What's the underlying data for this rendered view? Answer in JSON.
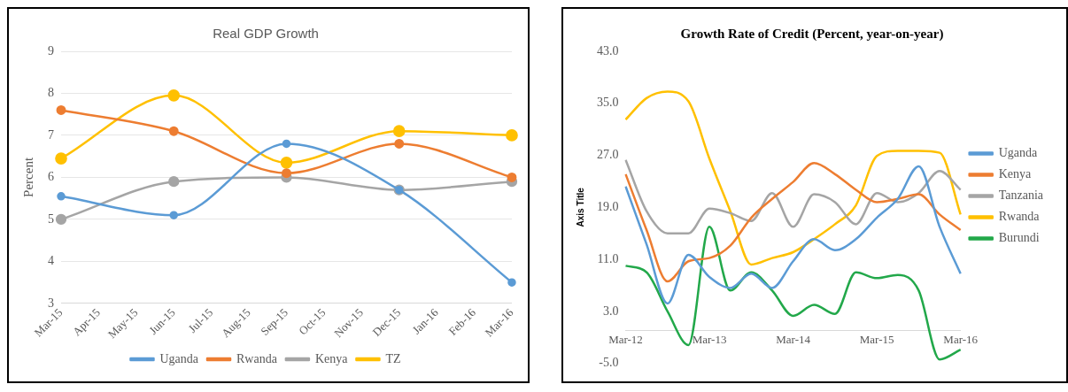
{
  "chart_data": [
    {
      "type": "line",
      "title": "Real GDP Growth",
      "ylabel": "Percent",
      "categories": [
        "Mar-15",
        "Apr-15",
        "May-15",
        "Jun-15",
        "Jul-15",
        "Aug-15",
        "Sep-15",
        "Oct-15",
        "Nov-15",
        "Dec-15",
        "Jan-16",
        "Feb-16",
        "Mar-16"
      ],
      "ylim": [
        3,
        9
      ],
      "yticks": [
        3,
        4,
        5,
        6,
        7,
        8,
        9
      ],
      "grid": "y",
      "legend": "bottom",
      "marker": "circle",
      "series": [
        {
          "name": "Uganda",
          "color": "#5b9bd5",
          "x": [
            "Mar-15",
            "Jun-15",
            "Sep-15",
            "Dec-15",
            "Mar-16"
          ],
          "values": [
            5.55,
            5.1,
            6.8,
            5.7,
            3.5
          ]
        },
        {
          "name": "Rwanda",
          "color": "#ed7d31",
          "x": [
            "Mar-15",
            "Jun-15",
            "Sep-15",
            "Dec-15",
            "Mar-16"
          ],
          "values": [
            7.6,
            7.1,
            6.1,
            6.8,
            6.0
          ]
        },
        {
          "name": "Kenya",
          "color": "#a5a5a5",
          "x": [
            "Mar-15",
            "Jun-15",
            "Sep-15",
            "Dec-15",
            "Mar-16"
          ],
          "values": [
            5.0,
            5.9,
            6.0,
            5.7,
            5.9
          ]
        },
        {
          "name": "TZ",
          "color": "#ffc000",
          "x": [
            "Mar-15",
            "Jun-15",
            "Sep-15",
            "Dec-15",
            "Mar-16"
          ],
          "values": [
            6.45,
            7.95,
            6.35,
            7.1,
            7.0
          ]
        }
      ]
    },
    {
      "type": "line",
      "title": "Growth Rate of Credit (Percent, year-on-year)",
      "ylabel": "Axis Title",
      "categories": [
        "Mar-12",
        null,
        null,
        null,
        "Mar-13",
        null,
        null,
        null,
        "Mar-14",
        null,
        null,
        null,
        "Mar-15",
        null,
        null,
        null,
        "Mar-16"
      ],
      "ylim": [
        -5,
        43
      ],
      "yticks": [
        {
          "value": -5,
          "label": "-5.0"
        },
        {
          "value": 3,
          "label": "3.0"
        },
        {
          "value": 11,
          "label": "11.0"
        },
        {
          "value": 19,
          "label": "19.0"
        },
        {
          "value": 27,
          "label": "27.0"
        },
        {
          "value": 35,
          "label": "35.0"
        },
        {
          "value": 43,
          "label": "43.0"
        }
      ],
      "legend": "right",
      "series": [
        {
          "name": "Uganda",
          "color": "#5b9bd5",
          "values": [
            22.2,
            13.3,
            4.2,
            11.7,
            8.3,
            6.6,
            8.8,
            6.6,
            10.7,
            14.1,
            12.4,
            14.1,
            17.4,
            20.3,
            25.3,
            16.0,
            8.8
          ]
        },
        {
          "name": "Kenya",
          "color": "#ed7d31",
          "values": [
            24.1,
            15.5,
            7.6,
            10.7,
            11.2,
            13.1,
            17.4,
            20.3,
            22.9,
            25.8,
            24.1,
            21.7,
            19.8,
            20.3,
            21.0,
            17.9,
            15.5
          ]
        },
        {
          "name": "Tanzania",
          "color": "#a5a5a5",
          "values": [
            26.3,
            18.4,
            15.0,
            15.0,
            18.8,
            18.1,
            16.9,
            21.2,
            16.0,
            21.0,
            19.8,
            16.4,
            21.2,
            19.8,
            21.2,
            24.6,
            21.7
          ]
        },
        {
          "name": "Rwanda",
          "color": "#ffc000",
          "values": [
            32.5,
            35.8,
            36.8,
            35.3,
            26.5,
            18.4,
            10.2,
            11.2,
            12.1,
            14.1,
            16.4,
            19.3,
            26.9,
            27.7,
            27.7,
            27.4,
            17.9
          ]
        },
        {
          "name": "Burundi",
          "color": "#22a84a",
          "values": [
            10.0,
            9.0,
            3.0,
            -2.2,
            16.0,
            6.2,
            9.0,
            6.2,
            2.3,
            4.0,
            2.6,
            9.0,
            8.1,
            8.6,
            6.2,
            -4.4,
            -2.9
          ]
        }
      ]
    }
  ]
}
